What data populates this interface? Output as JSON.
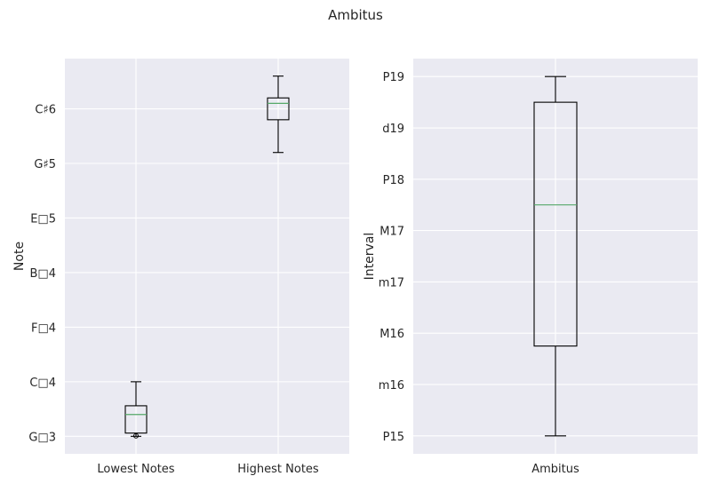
{
  "title": "Ambitus",
  "chart_data": [
    {
      "type": "box",
      "ylabel": "Note",
      "xlabel": "",
      "grid": true,
      "y_ticks": [
        {
          "value": 0,
          "label": "G□3"
        },
        {
          "value": 5,
          "label": "C□4"
        },
        {
          "value": 10,
          "label": "F□4"
        },
        {
          "value": 15,
          "label": "B□4"
        },
        {
          "value": 20,
          "label": "E□5"
        },
        {
          "value": 25,
          "label": "G♯5"
        },
        {
          "value": 30,
          "label": "C♯6"
        }
      ],
      "ylim": [
        -1.6,
        34.6
      ],
      "categories": [
        "Lowest Notes",
        "Highest Notes"
      ],
      "boxes": [
        {
          "whisker_low": 0,
          "q1": 0.3,
          "median": 2,
          "q3": 2.8,
          "whisker_high": 5
        },
        {
          "whisker_low": 26,
          "q1": 29,
          "median": 30.5,
          "q3": 31,
          "whisker_high": 33
        }
      ],
      "fliers": [
        {
          "box": 0,
          "y": 0.05
        }
      ]
    },
    {
      "type": "box",
      "ylabel": "Interval",
      "xlabel": "",
      "grid": true,
      "y_ticks": [
        {
          "value": 0,
          "label": "P15"
        },
        {
          "value": 1,
          "label": "m16"
        },
        {
          "value": 2,
          "label": "M16"
        },
        {
          "value": 3,
          "label": "m17"
        },
        {
          "value": 4,
          "label": "M17"
        },
        {
          "value": 5,
          "label": "P18"
        },
        {
          "value": 6,
          "label": "d19"
        },
        {
          "value": 7,
          "label": "P19"
        }
      ],
      "ylim": [
        -0.35,
        7.35
      ],
      "categories": [
        "Ambitus"
      ],
      "boxes": [
        {
          "whisker_low": 0,
          "q1": 1.75,
          "median": 4.5,
          "q3": 6.5,
          "whisker_high": 7
        }
      ],
      "fliers": []
    }
  ]
}
